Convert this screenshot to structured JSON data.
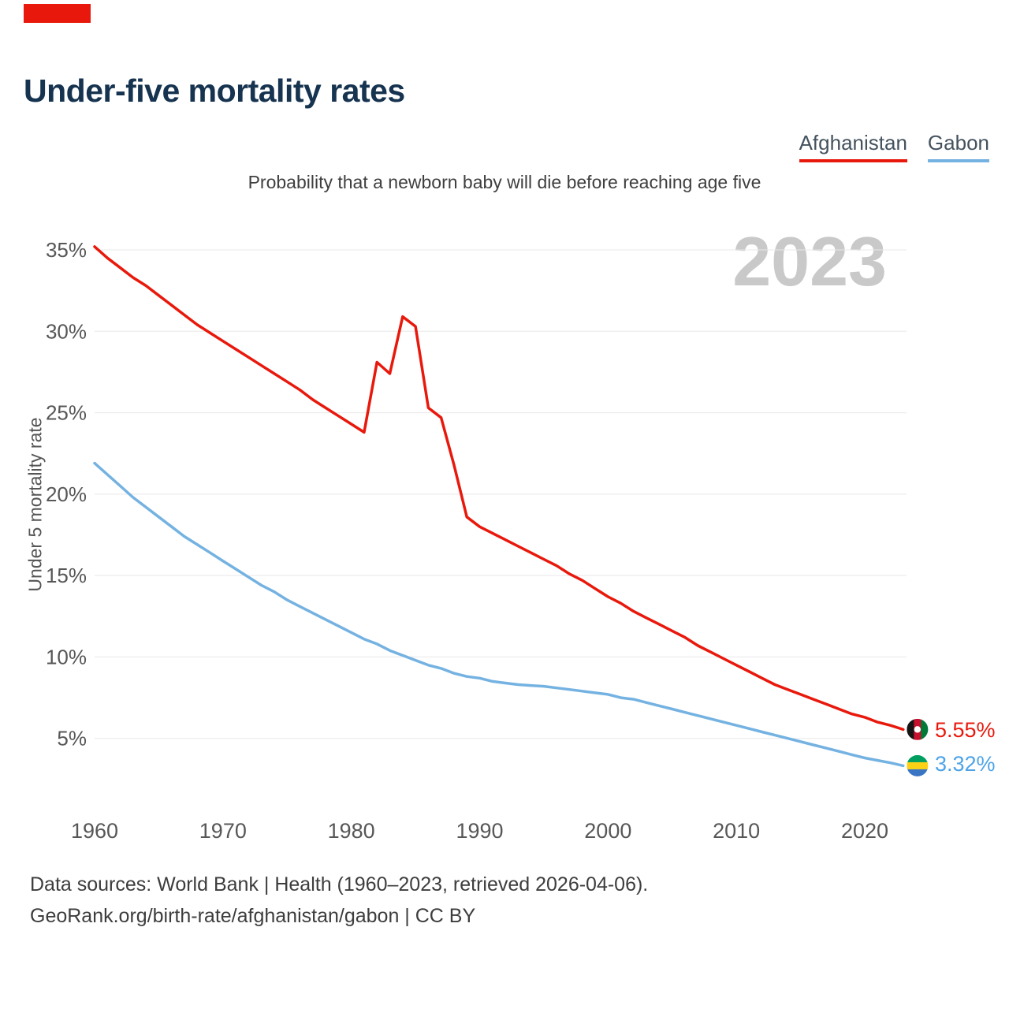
{
  "page": {
    "title": "Under-five mortality rates",
    "subtitle": "Probability that a newborn baby will die before reaching age five",
    "watermark": "2023",
    "footer": {
      "line1": "Data sources: World Bank | Health (1960–2023, retrieved 2026-04-06).",
      "line2": "GeoRank.org/birth-rate/afghanistan/gabon | CC BY"
    }
  },
  "legend": [
    {
      "label": "Afghanistan",
      "color": "#e8190c"
    },
    {
      "label": "Gabon",
      "color": "#74b2e2"
    }
  ],
  "chart_data": {
    "type": "line",
    "title": "Under-five mortality rates",
    "subtitle": "Probability that a newborn baby will die before reaching age five",
    "ylabel": "Under 5 mortality rate",
    "xlabel": "",
    "watermark_year": "2023",
    "grid": "horizontal",
    "legend_position": "top-right",
    "xlim": [
      1960,
      2023
    ],
    "ylim": [
      0,
      36
    ],
    "y_ticks": [
      {
        "value": 5,
        "label": "5%"
      },
      {
        "value": 10,
        "label": "10%"
      },
      {
        "value": 15,
        "label": "15%"
      },
      {
        "value": 20,
        "label": "20%"
      },
      {
        "value": 25,
        "label": "25%"
      },
      {
        "value": 30,
        "label": "30%"
      },
      {
        "value": 35,
        "label": "35%"
      }
    ],
    "x_ticks": [
      {
        "value": 1960,
        "label": "1960"
      },
      {
        "value": 1970,
        "label": "1970"
      },
      {
        "value": 1980,
        "label": "1980"
      },
      {
        "value": 1990,
        "label": "1990"
      },
      {
        "value": 2000,
        "label": "2000"
      },
      {
        "value": 2010,
        "label": "2010"
      },
      {
        "value": 2020,
        "label": "2020"
      }
    ],
    "x": [
      1960,
      1961,
      1962,
      1963,
      1964,
      1965,
      1966,
      1967,
      1968,
      1969,
      1970,
      1971,
      1972,
      1973,
      1974,
      1975,
      1976,
      1977,
      1978,
      1979,
      1980,
      1981,
      1982,
      1983,
      1984,
      1985,
      1986,
      1987,
      1988,
      1989,
      1990,
      1991,
      1992,
      1993,
      1994,
      1995,
      1996,
      1997,
      1998,
      1999,
      2000,
      2001,
      2002,
      2003,
      2004,
      2005,
      2006,
      2007,
      2008,
      2009,
      2010,
      2011,
      2012,
      2013,
      2014,
      2015,
      2016,
      2017,
      2018,
      2019,
      2020,
      2021,
      2022,
      2023
    ],
    "series": [
      {
        "name": "Afghanistan",
        "color": "#e8190c",
        "label_color": "#e8190c",
        "end_label": "5.55%",
        "flag_icon": "afghanistan-flag-icon",
        "flag": {
          "orientation": "vertical",
          "colors": [
            "#141414",
            "#c8102e",
            "#007a36"
          ],
          "emblem": "#ffffff"
        },
        "values": [
          35.2,
          34.5,
          33.9,
          33.3,
          32.8,
          32.2,
          31.6,
          31.0,
          30.4,
          29.9,
          29.4,
          28.9,
          28.4,
          27.9,
          27.4,
          26.9,
          26.4,
          25.8,
          25.3,
          24.8,
          24.3,
          23.8,
          28.1,
          27.4,
          30.9,
          30.3,
          25.3,
          24.7,
          21.8,
          18.6,
          18.0,
          17.6,
          17.2,
          16.8,
          16.4,
          16.0,
          15.6,
          15.1,
          14.7,
          14.2,
          13.7,
          13.3,
          12.8,
          12.4,
          12.0,
          11.6,
          11.2,
          10.7,
          10.3,
          9.9,
          9.5,
          9.1,
          8.7,
          8.3,
          8.0,
          7.7,
          7.4,
          7.1,
          6.8,
          6.5,
          6.3,
          6.0,
          5.8,
          5.55
        ]
      },
      {
        "name": "Gabon",
        "color": "#74b2e2",
        "label_color": "#4da3e8",
        "end_label": "3.32%",
        "flag_icon": "gabon-flag-icon",
        "flag": {
          "orientation": "horizontal",
          "colors": [
            "#009e60",
            "#fcd116",
            "#3a75c4"
          ],
          "emblem": null
        },
        "values": [
          21.9,
          21.2,
          20.5,
          19.8,
          19.2,
          18.6,
          18.0,
          17.4,
          16.9,
          16.4,
          15.9,
          15.4,
          14.9,
          14.4,
          14.0,
          13.5,
          13.1,
          12.7,
          12.3,
          11.9,
          11.5,
          11.1,
          10.8,
          10.4,
          10.1,
          9.8,
          9.5,
          9.3,
          9.0,
          8.8,
          8.7,
          8.5,
          8.4,
          8.3,
          8.25,
          8.2,
          8.1,
          8.0,
          7.9,
          7.8,
          7.7,
          7.5,
          7.4,
          7.2,
          7.0,
          6.8,
          6.6,
          6.4,
          6.2,
          6.0,
          5.8,
          5.6,
          5.4,
          5.2,
          5.0,
          4.8,
          4.6,
          4.4,
          4.2,
          4.0,
          3.8,
          3.65,
          3.5,
          3.32
        ]
      }
    ]
  }
}
